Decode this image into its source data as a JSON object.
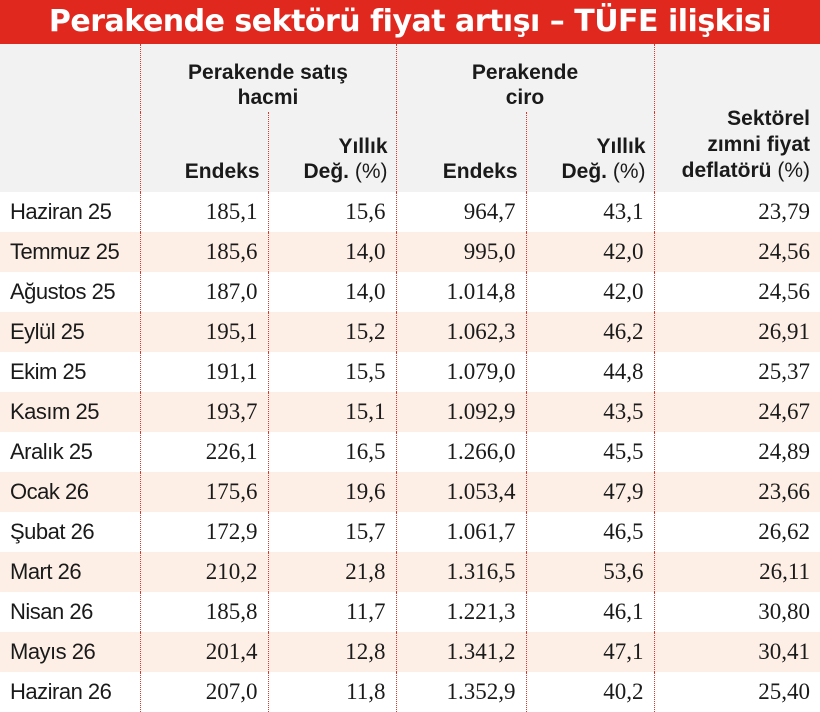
{
  "title": "Perakende sektörü fiyat artışı – TÜFE ilişkisi",
  "headers": {
    "group_volume_line1": "Perakende satış",
    "group_volume_line2": "hacmi",
    "group_turnover_line1": "Perakende",
    "group_turnover_line2": "ciro",
    "endeks": "Endeks",
    "yillik": "Yıllık",
    "deg": "Değ.",
    "pct": "(%)",
    "deflator_line1": "Sektörel",
    "deflator_line2": "zımni fiyat",
    "deflator_line3": "deflatörü"
  },
  "chart_data": {
    "type": "table",
    "title": "Perakende sektörü fiyat artışı – TÜFE ilişkisi",
    "columns": [
      "Perakende satış hacmi Endeks",
      "Perakende satış hacmi Yıllık Değ. (%)",
      "Perakende ciro Endeks",
      "Perakende ciro Yıllık Değ. (%)",
      "Sektörel zımni fiyat deflatörü (%)"
    ],
    "rows": [
      {
        "month": "Haziran 25",
        "vol_index": "185,1",
        "vol_yoy": "15,6",
        "ciro_index": "964,7",
        "ciro_yoy": "43,1",
        "deflator": "23,79"
      },
      {
        "month": "Temmuz 25",
        "vol_index": "185,6",
        "vol_yoy": "14,0",
        "ciro_index": "995,0",
        "ciro_yoy": "42,0",
        "deflator": "24,56"
      },
      {
        "month": "Ağustos 25",
        "vol_index": "187,0",
        "vol_yoy": "14,0",
        "ciro_index": "1.014,8",
        "ciro_yoy": "42,0",
        "deflator": "24,56"
      },
      {
        "month": "Eylül 25",
        "vol_index": "195,1",
        "vol_yoy": "15,2",
        "ciro_index": "1.062,3",
        "ciro_yoy": "46,2",
        "deflator": "26,91"
      },
      {
        "month": "Ekim 25",
        "vol_index": "191,1",
        "vol_yoy": "15,5",
        "ciro_index": "1.079,0",
        "ciro_yoy": "44,8",
        "deflator": "25,37"
      },
      {
        "month": "Kasım 25",
        "vol_index": "193,7",
        "vol_yoy": "15,1",
        "ciro_index": "1.092,9",
        "ciro_yoy": "43,5",
        "deflator": "24,67"
      },
      {
        "month": "Aralık 25",
        "vol_index": "226,1",
        "vol_yoy": "16,5",
        "ciro_index": "1.266,0",
        "ciro_yoy": "45,5",
        "deflator": "24,89"
      },
      {
        "month": "Ocak 26",
        "vol_index": "175,6",
        "vol_yoy": "19,6",
        "ciro_index": "1.053,4",
        "ciro_yoy": "47,9",
        "deflator": "23,66"
      },
      {
        "month": "Şubat 26",
        "vol_index": "172,9",
        "vol_yoy": "15,7",
        "ciro_index": "1.061,7",
        "ciro_yoy": "46,5",
        "deflator": "26,62"
      },
      {
        "month": "Mart 26",
        "vol_index": "210,2",
        "vol_yoy": "21,8",
        "ciro_index": "1.316,5",
        "ciro_yoy": "53,6",
        "deflator": "26,11"
      },
      {
        "month": "Nisan 26",
        "vol_index": "185,8",
        "vol_yoy": "11,7",
        "ciro_index": "1.221,3",
        "ciro_yoy": "46,1",
        "deflator": "30,80"
      },
      {
        "month": "Mayıs 26",
        "vol_index": "201,4",
        "vol_yoy": "12,8",
        "ciro_index": "1.341,2",
        "ciro_yoy": "47,1",
        "deflator": "30,41"
      },
      {
        "month": "Haziran 26",
        "vol_index": "207,0",
        "vol_yoy": "11,8",
        "ciro_index": "1.352,9",
        "ciro_yoy": "40,2",
        "deflator": "25,40"
      }
    ]
  },
  "colors": {
    "title_bg": "#e0281f",
    "header_bg": "#f2f2f2",
    "stripe_bg": "#fdefe6",
    "divider": "#d9392f"
  }
}
